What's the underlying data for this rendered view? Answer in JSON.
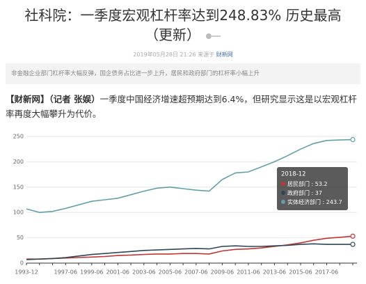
{
  "article": {
    "title": "社科院：一季度宏观杠杆率达到248.83% 历史最高",
    "title_suffix": "（更新）",
    "date": "2019年05月28日 21:26",
    "source_prefix": "来源于",
    "source": "财新网",
    "summary": "非金融企业部门杠杆率大幅反弹，国企债务占比进一步上升，居民和政府部门的杠杆率小幅上升",
    "lead_bold": "【财新网】（记者 张娱）",
    "lead": "一季度中国经济增速超预期达到6.4%，但研究显示这是以宏观杠杆率再度大幅攀升为代价。"
  },
  "chart_data": {
    "type": "line",
    "categories": [
      "1993-12",
      null,
      null,
      "1997-06",
      null,
      "1999-06",
      null,
      "2001-06",
      null,
      "2003-06",
      null,
      "2005-06",
      null,
      "2007-06",
      null,
      "2009-06",
      null,
      "2011-06",
      null,
      "2013-06",
      null,
      "2015-06",
      null,
      "2017-06",
      null,
      null
    ],
    "series": [
      {
        "name": "居民部门",
        "color": "#c23531",
        "values": [
          8,
          8,
          9,
          10,
          11,
          12,
          13,
          15,
          16,
          17,
          18,
          18,
          19,
          19,
          18,
          24,
          27,
          28,
          30,
          33,
          36,
          40,
          45,
          49,
          51,
          53.2
        ]
      },
      {
        "name": "政府部门",
        "color": "#2f4554",
        "values": [
          7,
          8,
          9,
          11,
          14,
          17,
          19,
          21,
          23,
          25,
          26,
          27,
          28,
          29,
          28,
          33,
          34,
          33,
          33,
          34,
          35,
          37,
          38,
          37,
          37,
          37
        ]
      },
      {
        "name": "实体经济部门",
        "color": "#61a0a8",
        "values": [
          107,
          100,
          102,
          108,
          115,
          122,
          125,
          128,
          135,
          142,
          148,
          150,
          147,
          144,
          142,
          165,
          178,
          180,
          190,
          200,
          212,
          225,
          236,
          242,
          243,
          243.7
        ]
      }
    ],
    "ylim": [
      0,
      250
    ],
    "yticks": [
      0,
      50,
      100,
      150,
      200,
      250
    ],
    "grid": true,
    "tooltip_title": "2018-12"
  }
}
